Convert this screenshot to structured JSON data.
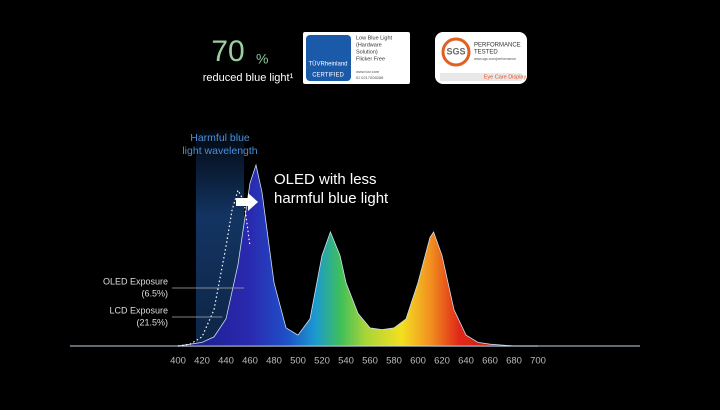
{
  "header": {
    "stat": "70",
    "stat_unit": "%",
    "stat_caption": "reduced blue light¹",
    "tuv_badge": {
      "brand": "TÜVRheinland",
      "seal": "CERTIFIED",
      "lines": [
        "Low Blue Light",
        "(Hardware",
        "Solution)",
        "Flicker Free"
      ],
      "footer": [
        "www.tuv.com",
        "ID 0217008288"
      ]
    },
    "sgs_badge": {
      "brand": "SGS",
      "lines": [
        "PERFORMANCE",
        "TESTED"
      ],
      "url": "www.sgs.com/performance",
      "footer": "Eye Care Display"
    }
  },
  "chart_data": {
    "type": "area",
    "xlim": [
      310,
      785
    ],
    "ylim": [
      0,
      1
    ],
    "xticks": [
      400,
      420,
      440,
      460,
      480,
      500,
      520,
      540,
      560,
      580,
      600,
      620,
      640,
      660,
      680,
      700
    ],
    "band": [
      415,
      455
    ],
    "band_label": [
      "Harmful blue",
      "light wavelength"
    ],
    "callout": [
      "OLED with less",
      "harmful blue light"
    ],
    "annotations": [
      [
        "OLED Exposure",
        "(6.5%)"
      ],
      [
        "LCD Exposure",
        "(21.5%)"
      ]
    ],
    "series": [
      {
        "style": "spectrum",
        "x": [
          400,
          410,
          420,
          430,
          440,
          450,
          460,
          465,
          470,
          480,
          490,
          500,
          510,
          520,
          527,
          535,
          540,
          550,
          560,
          570,
          580,
          590,
          600,
          610,
          613,
          620,
          630,
          640,
          650,
          660,
          680,
          700
        ],
        "values": [
          0,
          0.01,
          0.02,
          0.05,
          0.15,
          0.45,
          0.9,
          1.0,
          0.85,
          0.35,
          0.1,
          0.06,
          0.15,
          0.5,
          0.63,
          0.5,
          0.35,
          0.18,
          0.1,
          0.09,
          0.1,
          0.15,
          0.35,
          0.6,
          0.63,
          0.5,
          0.2,
          0.06,
          0.02,
          0.01,
          0,
          0
        ]
      },
      {
        "style": "dotted",
        "color": "#ffffff",
        "x": [
          400,
          410,
          420,
          430,
          440,
          445,
          450,
          455,
          460
        ],
        "values": [
          0,
          0.01,
          0.05,
          0.2,
          0.55,
          0.75,
          0.86,
          0.8,
          0.55
        ]
      }
    ]
  }
}
